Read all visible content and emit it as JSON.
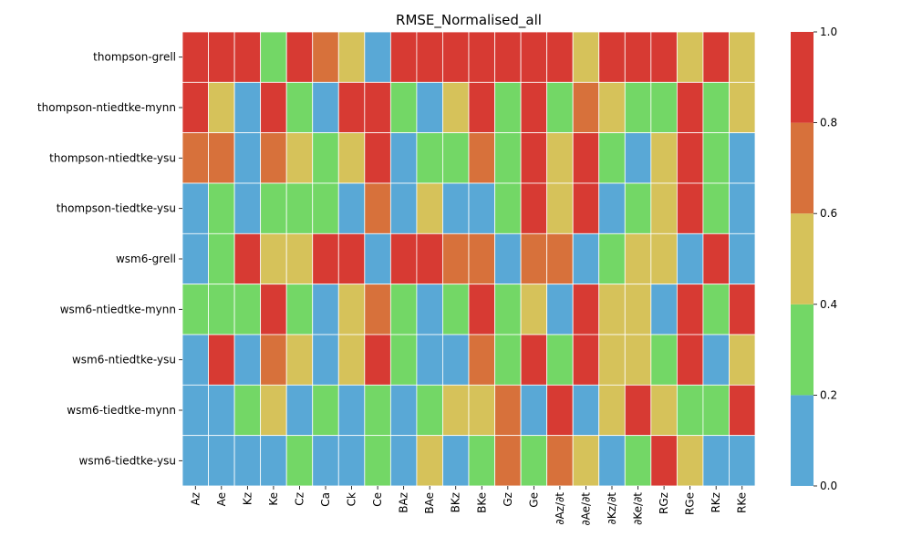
{
  "chart_data": {
    "type": "heatmap",
    "title": "RMSE_Normalised_all",
    "rows": [
      "thompson-grell",
      "thompson-ntiedtke-mynn",
      "thompson-ntiedtke-ysu",
      "thompson-tiedtke-ysu",
      "wsm6-grell",
      "wsm6-ntiedtke-mynn",
      "wsm6-ntiedtke-ysu",
      "wsm6-tiedtke-mynn",
      "wsm6-tiedtke-ysu"
    ],
    "columns": [
      "Az",
      "Ae",
      "Kz",
      "Ke",
      "Cz",
      "Ca",
      "Ck",
      "Ce",
      "BAz",
      "BAe",
      "BKz",
      "BKe",
      "Gz",
      "Ge",
      "∂Az/∂t",
      "∂Ae/∂t",
      "∂Kz/∂t",
      "∂Ke/∂t",
      "RGz",
      "RGe",
      "RKz",
      "RKe"
    ],
    "values": [
      [
        0.9,
        0.9,
        0.9,
        0.3,
        0.9,
        0.7,
        0.5,
        0.1,
        0.9,
        0.9,
        0.9,
        0.9,
        0.9,
        0.9,
        0.9,
        0.5,
        0.9,
        0.9,
        0.9,
        0.5,
        0.9,
        0.5
      ],
      [
        0.9,
        0.5,
        0.1,
        0.9,
        0.3,
        0.1,
        0.9,
        0.9,
        0.3,
        0.1,
        0.5,
        0.9,
        0.3,
        0.9,
        0.3,
        0.7,
        0.5,
        0.3,
        0.3,
        0.9,
        0.3,
        0.5
      ],
      [
        0.7,
        0.7,
        0.1,
        0.7,
        0.5,
        0.3,
        0.5,
        0.9,
        0.1,
        0.3,
        0.3,
        0.7,
        0.3,
        0.9,
        0.5,
        0.9,
        0.3,
        0.1,
        0.5,
        0.9,
        0.3,
        0.1
      ],
      [
        0.1,
        0.3,
        0.1,
        0.3,
        0.3,
        0.3,
        0.1,
        0.7,
        0.1,
        0.5,
        0.1,
        0.1,
        0.3,
        0.9,
        0.5,
        0.9,
        0.1,
        0.3,
        0.5,
        0.9,
        0.3,
        0.1
      ],
      [
        0.1,
        0.3,
        0.9,
        0.5,
        0.5,
        0.9,
        0.9,
        0.1,
        0.9,
        0.9,
        0.7,
        0.7,
        0.1,
        0.7,
        0.7,
        0.1,
        0.3,
        0.5,
        0.5,
        0.1,
        0.9,
        0.1
      ],
      [
        0.3,
        0.3,
        0.3,
        0.9,
        0.3,
        0.1,
        0.5,
        0.7,
        0.3,
        0.1,
        0.3,
        0.9,
        0.3,
        0.5,
        0.1,
        0.9,
        0.5,
        0.5,
        0.1,
        0.9,
        0.3,
        0.9
      ],
      [
        0.1,
        0.9,
        0.1,
        0.7,
        0.5,
        0.1,
        0.5,
        0.9,
        0.3,
        0.1,
        0.1,
        0.7,
        0.3,
        0.9,
        0.3,
        0.9,
        0.5,
        0.5,
        0.3,
        0.9,
        0.1,
        0.5
      ],
      [
        0.1,
        0.1,
        0.3,
        0.5,
        0.1,
        0.3,
        0.1,
        0.3,
        0.1,
        0.3,
        0.5,
        0.5,
        0.7,
        0.1,
        0.9,
        0.1,
        0.5,
        0.9,
        0.5,
        0.3,
        0.3,
        0.9
      ],
      [
        0.1,
        0.1,
        0.1,
        0.1,
        0.3,
        0.1,
        0.1,
        0.3,
        0.1,
        0.5,
        0.1,
        0.3,
        0.7,
        0.3,
        0.7,
        0.5,
        0.1,
        0.3,
        0.9,
        0.5,
        0.1,
        0.1
      ]
    ],
    "colorscale": {
      "bins": [
        0.0,
        0.2,
        0.4,
        0.6,
        0.8,
        1.0
      ],
      "colors": [
        "#59a8d6",
        "#73d766",
        "#d6c25a",
        "#d7713b",
        "#d73a33"
      ],
      "ticks": [
        "0.0",
        "0.2",
        "0.4",
        "0.6",
        "0.8",
        "1.0"
      ],
      "vmin": 0.0,
      "vmax": 1.0
    },
    "grid_lines": true
  }
}
